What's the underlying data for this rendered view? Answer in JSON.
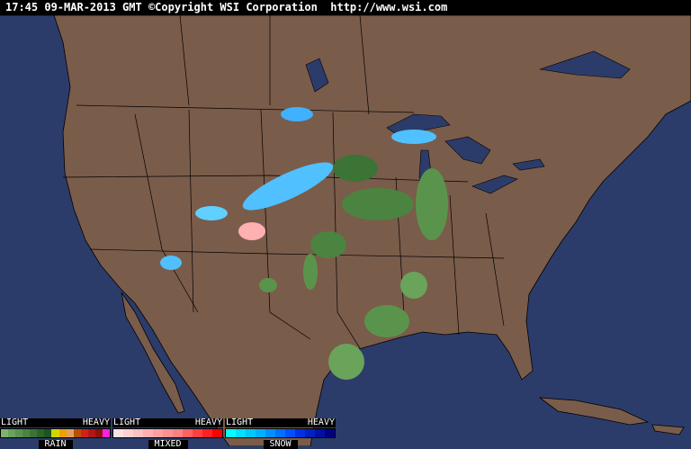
{
  "header": {
    "timestamp": "17:45 09-MAR-2013 GMT",
    "copyright": "©Copyright WSI Corporation",
    "url": "http://www.wsi.com"
  },
  "colors": {
    "ocean": "#2c3c6a",
    "land": "#7a5c4a",
    "border": "#000000"
  },
  "legend": [
    {
      "name": "RAIN",
      "light": "LIGHT",
      "heavy": "HEAVY",
      "colors": [
        "#7fb26a",
        "#6aa35a",
        "#5a944c",
        "#4a8440",
        "#3b7434",
        "#2c6428",
        "#1e541e",
        "#d4d400",
        "#f0a000",
        "#e0a060",
        "#b85000",
        "#d02020",
        "#b01818",
        "#901010",
        "#ff20e0"
      ]
    },
    {
      "name": "MIXED",
      "light": "LIGHT",
      "heavy": "HEAVY",
      "colors": [
        "#ffe0e0",
        "#ffd0d0",
        "#ffc0c0",
        "#ffb0b0",
        "#ffa0a0",
        "#ff9090",
        "#ff8080",
        "#ff6060",
        "#ff4040",
        "#ff2020",
        "#ff0000"
      ]
    },
    {
      "name": "SNOW",
      "light": "LIGHT",
      "heavy": "HEAVY",
      "colors": [
        "#00ffff",
        "#00e0ff",
        "#00c8ff",
        "#00b0ff",
        "#0090ff",
        "#0070ff",
        "#0050ff",
        "#0030e0",
        "#0020c0",
        "#0010a0",
        "#000080"
      ]
    }
  ]
}
